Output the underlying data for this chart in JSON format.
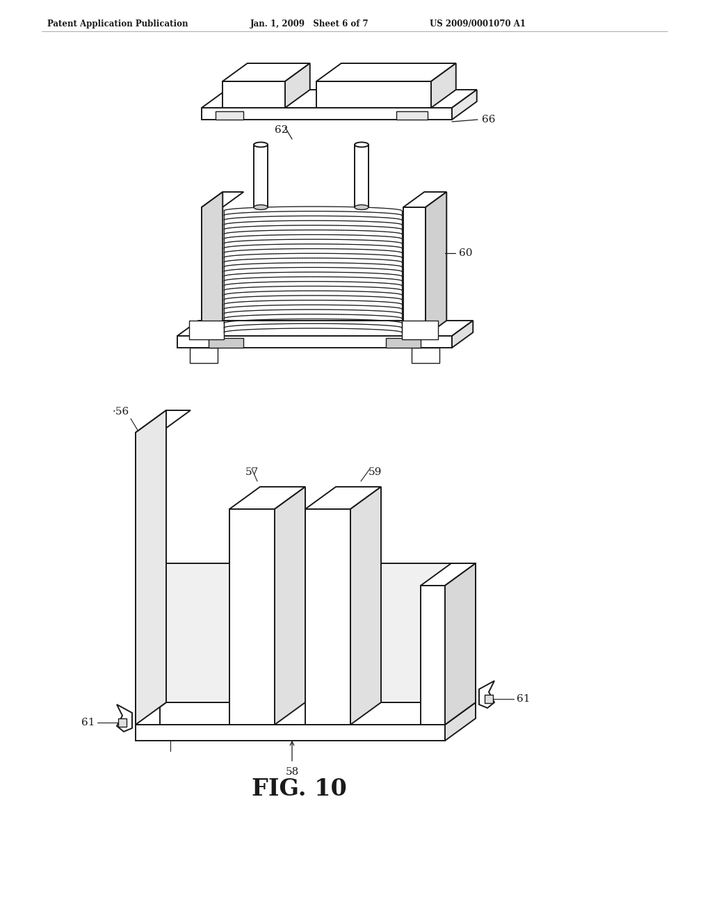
{
  "bg_color": "#ffffff",
  "header_left": "Patent Application Publication",
  "header_mid": "Jan. 1, 2009   Sheet 6 of 7",
  "header_right": "US 2009/0001070 A1",
  "fig_label": "FIG. 10",
  "lc": "#1a1a1a",
  "lw": 1.4,
  "tlw": 1.0
}
